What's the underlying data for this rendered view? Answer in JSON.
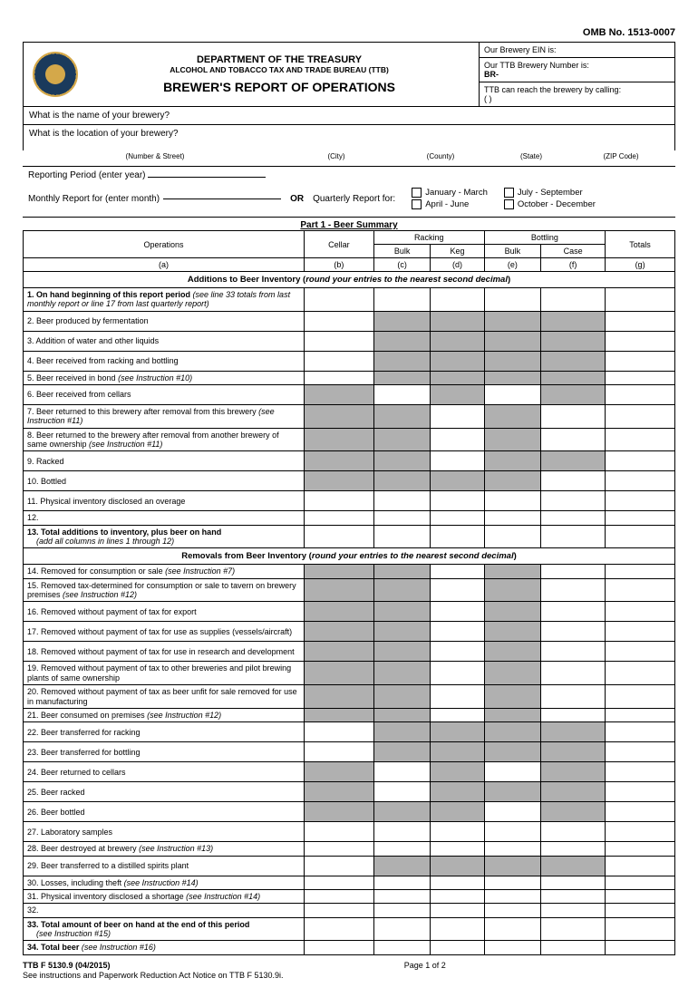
{
  "omb": "OMB No. 1513-0007",
  "header": {
    "dept": "DEPARTMENT OF THE TREASURY",
    "bureau": "ALCOHOL AND TOBACCO TAX AND TRADE BUREAU (TTB)",
    "title": "BREWER'S REPORT OF OPERATIONS",
    "ein_label": "Our Brewery EIN is:",
    "ttb_num_label": "Our TTB Brewery Number is:",
    "ttb_num_prefix": "BR-",
    "call_label": "TTB can reach the brewery by calling:",
    "call_value": "(            )"
  },
  "questions": {
    "name": "What is the name of your brewery?",
    "location": "What is the location of your brewery?"
  },
  "loc_labels": [
    "(Number & Street)",
    "(City)",
    "(County)",
    "(State)",
    "(ZIP Code)"
  ],
  "period": {
    "year_label": "Reporting Period (enter year)",
    "month_label": "Monthly Report for (enter month)",
    "or": "OR",
    "quarterly_label": "Quarterly Report for:",
    "quarters": [
      "January - March",
      "July - September",
      "April - June",
      "October - December"
    ]
  },
  "part1": {
    "title": "Part 1 - Beer Summary",
    "columns": {
      "ops": "Operations",
      "cellar": "Cellar",
      "racking": "Racking",
      "bulk": "Bulk",
      "keg": "Keg",
      "bottling": "Bottling",
      "ebulk": "Bulk",
      "case": "Case",
      "totals": "Totals",
      "letters": [
        "(a)",
        "(b)",
        "(c)",
        "(d)",
        "(e)",
        "(f)",
        "(g)"
      ]
    },
    "additions_hdr": "Additions to Beer Inventory (",
    "additions_em": "round your entries to the nearest second decimal",
    "additions_close": ")",
    "removals_hdr": "Removals from Beer Inventory (",
    "removals_em": "round your entries to the nearest second decimal",
    "removals_close": ")"
  },
  "rows_add": [
    {
      "n": "1.",
      "bold": true,
      "label": "On hand beginning of this report period",
      "em": "(see line 33 totals from last monthly report or line 17 from last quarterly report)",
      "shade": []
    },
    {
      "n": "2.",
      "label": "Beer produced by fermentation",
      "shade": [
        2,
        3,
        4,
        5
      ]
    },
    {
      "n": "3.",
      "label": "Addition of water and other liquids",
      "shade": [
        2,
        3,
        4,
        5
      ]
    },
    {
      "n": "4.",
      "label": "Beer received from racking and bottling",
      "shade": [
        2,
        3,
        4,
        5
      ]
    },
    {
      "n": "5.",
      "label": "Beer received in bond ",
      "em": "(see Instruction #10)",
      "shade": [
        2,
        3,
        4,
        5
      ]
    },
    {
      "n": "6.",
      "label": "Beer received from cellars",
      "shade": [
        1,
        3,
        5
      ]
    },
    {
      "n": "7.",
      "label": "Beer returned to this brewery after removal from this brewery ",
      "em": "(see Instruction #11)",
      "shade": [
        1,
        2,
        4
      ]
    },
    {
      "n": "8.",
      "label": "Beer returned to the brewery after removal from another brewery of same ownership ",
      "em": "(see Instruction #11)",
      "shade": [
        1,
        2,
        4
      ]
    },
    {
      "n": "9.",
      "label": "Racked",
      "shade": [
        1,
        2,
        4,
        5
      ]
    },
    {
      "n": "10.",
      "label": "Bottled",
      "shade": [
        1,
        2,
        3,
        4
      ]
    },
    {
      "n": "11.",
      "label": "Physical inventory disclosed an overage",
      "shade": []
    },
    {
      "n": "12.",
      "label": "",
      "shade": []
    },
    {
      "n": "13.",
      "bold": true,
      "label": "Total additions to inventory, plus beer on hand",
      "sub": "(add all columns in lines 1 through 12)",
      "shade": []
    }
  ],
  "rows_rem": [
    {
      "n": "14.",
      "label": "Removed for consumption or sale ",
      "em": "(see Instruction #7)",
      "shade": [
        1,
        2,
        4
      ]
    },
    {
      "n": "15.",
      "label": "Removed tax-determined for consumption or sale to tavern on brewery premises ",
      "em": "(see Instruction #12)",
      "shade": [
        1,
        2,
        4
      ]
    },
    {
      "n": "16.",
      "label": "Removed without payment of tax for export",
      "shade": [
        1,
        2,
        4
      ]
    },
    {
      "n": "17.",
      "label": "Removed without payment of tax for use as supplies (vessels/aircraft)",
      "shade": [
        1,
        2,
        4
      ]
    },
    {
      "n": "18.",
      "label": "Removed without payment of tax for use in research and development",
      "shade": [
        1,
        2,
        4
      ]
    },
    {
      "n": "19.",
      "label": "Removed without payment of tax to other breweries and pilot brewing plants of same ownership",
      "shade": [
        1,
        2,
        4
      ]
    },
    {
      "n": "20.",
      "label": "Removed without payment of tax as beer unfit for sale removed for use in manufacturing",
      "shade": [
        1,
        2,
        4
      ]
    },
    {
      "n": "21.",
      "label": "Beer consumed on premises ",
      "em": "(see Instruction #12)",
      "shade": [
        1,
        2,
        4
      ]
    },
    {
      "n": "22.",
      "label": "Beer transferred for racking",
      "shade": [
        2,
        3,
        4,
        5
      ]
    },
    {
      "n": "23.",
      "label": "Beer transferred for bottling",
      "shade": [
        2,
        3,
        4,
        5
      ]
    },
    {
      "n": "24.",
      "label": "Beer returned to cellars",
      "shade": [
        1,
        3,
        5
      ]
    },
    {
      "n": "25.",
      "label": "Beer racked",
      "shade": [
        1,
        3,
        4,
        5
      ]
    },
    {
      "n": "26.",
      "label": "Beer bottled",
      "shade": [
        1,
        2,
        3,
        5
      ]
    },
    {
      "n": "27.",
      "label": "Laboratory samples",
      "shade": []
    },
    {
      "n": "28.",
      "label": "Beer destroyed at brewery ",
      "em": "(see Instruction #13)",
      "shade": []
    },
    {
      "n": "29.",
      "label": "Beer transferred to a distilled spirits plant",
      "shade": [
        2,
        3,
        4,
        5
      ]
    },
    {
      "n": "30.",
      "label": "Losses, including theft ",
      "em": "(see Instruction #14)",
      "shade": []
    },
    {
      "n": "31.",
      "label": "Physical inventory disclosed a shortage ",
      "em": "(see Instruction #14)",
      "shade": []
    },
    {
      "n": "32.",
      "label": "",
      "shade": []
    },
    {
      "n": "33.",
      "bold": true,
      "label": "Total amount of beer on hand at the end of this period",
      "sub": "(see Instruction #15)",
      "shade": []
    },
    {
      "n": "34.",
      "bold": true,
      "label": "Total beer ",
      "em": "(see Instruction #16)",
      "shade": []
    }
  ],
  "footer": {
    "form": "TTB F 5130.9  (04/2015)",
    "page": "Page 1 of 2",
    "note": "See instructions and Paperwork Reduction Act Notice on TTB F 5130.9i."
  }
}
